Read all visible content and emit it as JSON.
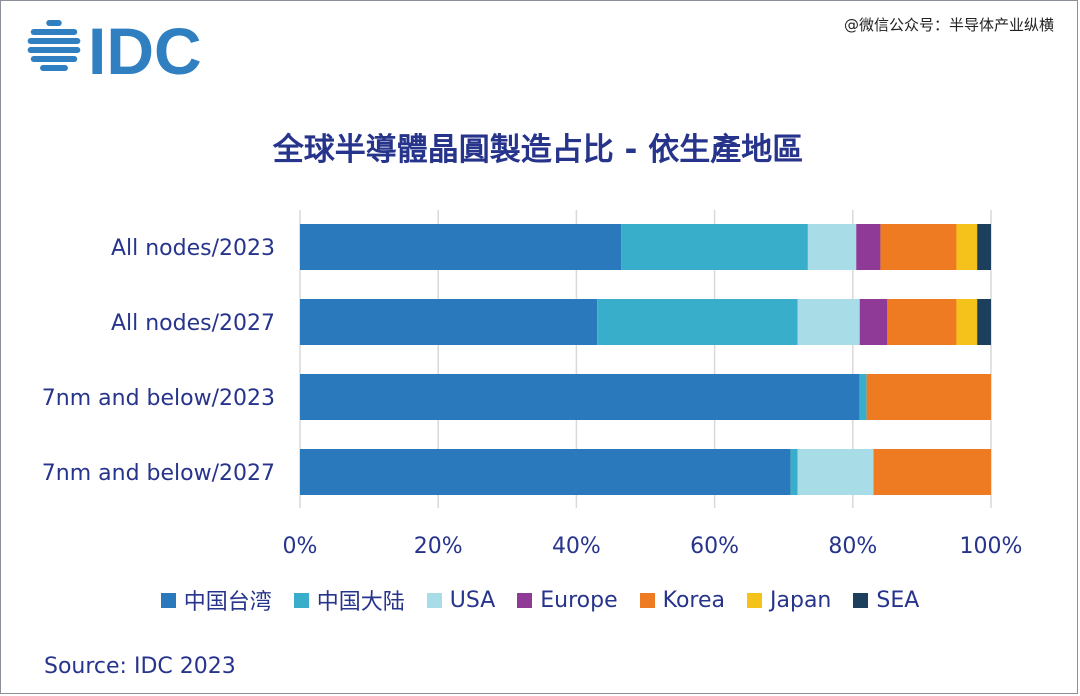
{
  "brand": {
    "logo_text": "IDC",
    "logo_color": "#2f7fc1"
  },
  "watermark": "@微信公众号：半导体产业纵横",
  "source": "Source: IDC 2023",
  "colors": {
    "text": "#27348b",
    "grid": "#d9d9d9",
    "plot_bg": "#ffffff"
  },
  "chart_data": {
    "type": "bar",
    "orientation": "horizontal",
    "stacked": true,
    "title": "全球半導體晶圓製造占比 - 依生產地區",
    "categories": [
      "All nodes/2023",
      "All nodes/2027",
      "7nm and below/2023",
      "7nm and below/2027"
    ],
    "xlim": [
      0,
      100
    ],
    "x_ticks": [
      "0%",
      "20%",
      "40%",
      "60%",
      "80%",
      "100%"
    ],
    "x_tick_values": [
      0,
      20,
      40,
      60,
      80,
      100
    ],
    "grid": true,
    "legend_position": "bottom",
    "series": [
      {
        "name": "中国台湾",
        "color": "#2a79bd",
        "values": [
          46.5,
          43,
          81,
          71
        ]
      },
      {
        "name": "中国大陆",
        "color": "#39aecb",
        "values": [
          27,
          29,
          1,
          1
        ]
      },
      {
        "name": "USA",
        "color": "#a8dce6",
        "values": [
          7,
          9,
          0,
          11
        ]
      },
      {
        "name": "Europe",
        "color": "#8e3a96",
        "values": [
          3.5,
          4,
          0,
          0
        ]
      },
      {
        "name": "Korea",
        "color": "#ee7b22",
        "values": [
          11,
          10,
          18,
          17
        ]
      },
      {
        "name": "Japan",
        "color": "#f4c21b",
        "values": [
          3,
          3,
          0,
          0
        ]
      },
      {
        "name": "SEA",
        "color": "#1b3f5c",
        "values": [
          2,
          2,
          0,
          0
        ]
      }
    ]
  }
}
